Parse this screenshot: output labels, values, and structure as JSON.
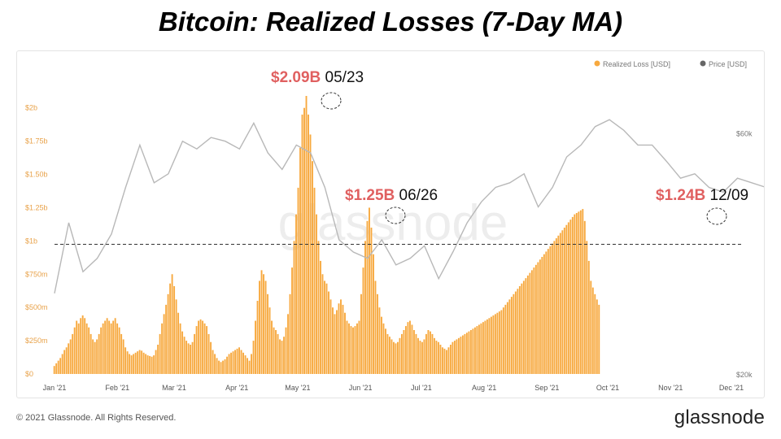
{
  "title": "Bitcoin: Realized Losses (7-Day MA)",
  "footer": {
    "copyright": "© 2021 Glassnode. All Rights Reserved.",
    "brand": "glassnode"
  },
  "watermark": "glassnode",
  "colors": {
    "loss": "#f7a93f",
    "price": "#b8b8b8",
    "annotation_value": "#e06060",
    "axis_text": "#e8a24a"
  },
  "chart_data": {
    "type": "bar",
    "legend": {
      "placement": "top-right",
      "items": [
        "Realized Loss [USD]",
        "Price [USD]"
      ]
    },
    "x_tick_labels": [
      "Jan '21",
      "Feb '21",
      "Mar '21",
      "Apr '21",
      "May '21",
      "Jun '21",
      "Jul '21",
      "Aug '21",
      "Sep '21",
      "Oct '21",
      "Nov '21",
      "Dec '21"
    ],
    "y_left": {
      "label_values": [
        0,
        250,
        500,
        750,
        1000,
        1250,
        1500,
        1750,
        2000
      ],
      "tick_labels": [
        "$0",
        "$250m",
        "$500m",
        "$750m",
        "$1b",
        "$1.25b",
        "$1.50b",
        "$1.75b",
        "$2b"
      ],
      "unit": "USD millions",
      "ylim": [
        0,
        2090
      ]
    },
    "y_right": {
      "tick_labels": [
        "$20k",
        "$60k"
      ],
      "values": [
        20000,
        60000
      ],
      "scale": "log"
    },
    "reference_line": {
      "value": 975,
      "style": "dashed"
    },
    "realized_loss": {
      "start_date": "2021-01-01",
      "step_days": 1,
      "values_musd": [
        60,
        80,
        100,
        120,
        150,
        180,
        200,
        230,
        260,
        300,
        350,
        400,
        380,
        420,
        440,
        420,
        380,
        350,
        300,
        260,
        240,
        260,
        300,
        350,
        380,
        400,
        420,
        400,
        380,
        400,
        420,
        380,
        350,
        300,
        260,
        200,
        170,
        150,
        140,
        150,
        160,
        170,
        180,
        175,
        160,
        150,
        140,
        135,
        130,
        140,
        180,
        220,
        300,
        380,
        450,
        520,
        600,
        680,
        750,
        660,
        560,
        460,
        380,
        320,
        280,
        250,
        230,
        220,
        240,
        300,
        360,
        400,
        410,
        400,
        380,
        360,
        300,
        240,
        180,
        150,
        120,
        100,
        90,
        100,
        110,
        130,
        150,
        160,
        170,
        180,
        190,
        200,
        180,
        160,
        140,
        120,
        100,
        150,
        250,
        400,
        550,
        700,
        780,
        750,
        700,
        600,
        500,
        400,
        350,
        330,
        300,
        260,
        250,
        280,
        350,
        450,
        600,
        800,
        1000,
        1200,
        1400,
        1700,
        1950,
        2000,
        2090,
        1950,
        1800,
        1600,
        1400,
        1200,
        1000,
        850,
        750,
        700,
        680,
        620,
        560,
        500,
        450,
        480,
        530,
        560,
        520,
        460,
        400,
        380,
        360,
        350,
        360,
        380,
        400,
        600,
        800,
        1000,
        1150,
        1250,
        1100,
        900,
        700,
        600,
        500,
        430,
        380,
        340,
        300,
        280,
        260,
        240,
        230,
        240,
        270,
        300,
        330,
        360,
        390,
        400,
        370,
        330,
        300,
        270,
        250,
        240,
        260,
        300,
        330,
        320,
        300,
        270,
        250,
        240,
        220,
        200,
        190,
        180,
        200,
        220,
        240,
        250,
        260,
        270,
        280,
        290,
        300,
        310,
        320,
        330,
        340,
        350,
        360,
        370,
        380,
        390,
        400,
        410,
        420,
        430,
        440,
        450,
        460,
        470,
        480,
        500,
        520,
        540,
        560,
        580,
        600,
        620,
        640,
        660,
        680,
        700,
        720,
        740,
        760,
        780,
        800,
        820,
        840,
        860,
        880,
        900,
        920,
        940,
        960,
        980,
        1000,
        1020,
        1040,
        1060,
        1080,
        1100,
        1120,
        1140,
        1160,
        1180,
        1200,
        1210,
        1220,
        1230,
        1240,
        1150,
        1000,
        850,
        700,
        650,
        600,
        560,
        520
      ]
    },
    "price_usd": {
      "start_date": "2021-01-01",
      "step_days": 7,
      "values": [
        29000,
        40000,
        32000,
        34000,
        38000,
        47000,
        57000,
        48000,
        50000,
        58000,
        56000,
        59000,
        58000,
        56000,
        63000,
        55000,
        51000,
        57000,
        55000,
        47000,
        37000,
        35000,
        34000,
        37000,
        33000,
        34000,
        36000,
        31000,
        35000,
        40000,
        44000,
        47000,
        48000,
        50000,
        43000,
        47000,
        54000,
        57000,
        62000,
        64000,
        61000,
        57000,
        57000,
        53000,
        49000,
        50000,
        47000,
        46000,
        49000,
        48000,
        47000,
        46000,
        47000
      ]
    },
    "annotations": [
      {
        "value": "$2.09B",
        "date": "05/23"
      },
      {
        "value": "$1.25B",
        "date": "06/26"
      },
      {
        "value": "$1.24B",
        "date": "12/09"
      }
    ]
  }
}
